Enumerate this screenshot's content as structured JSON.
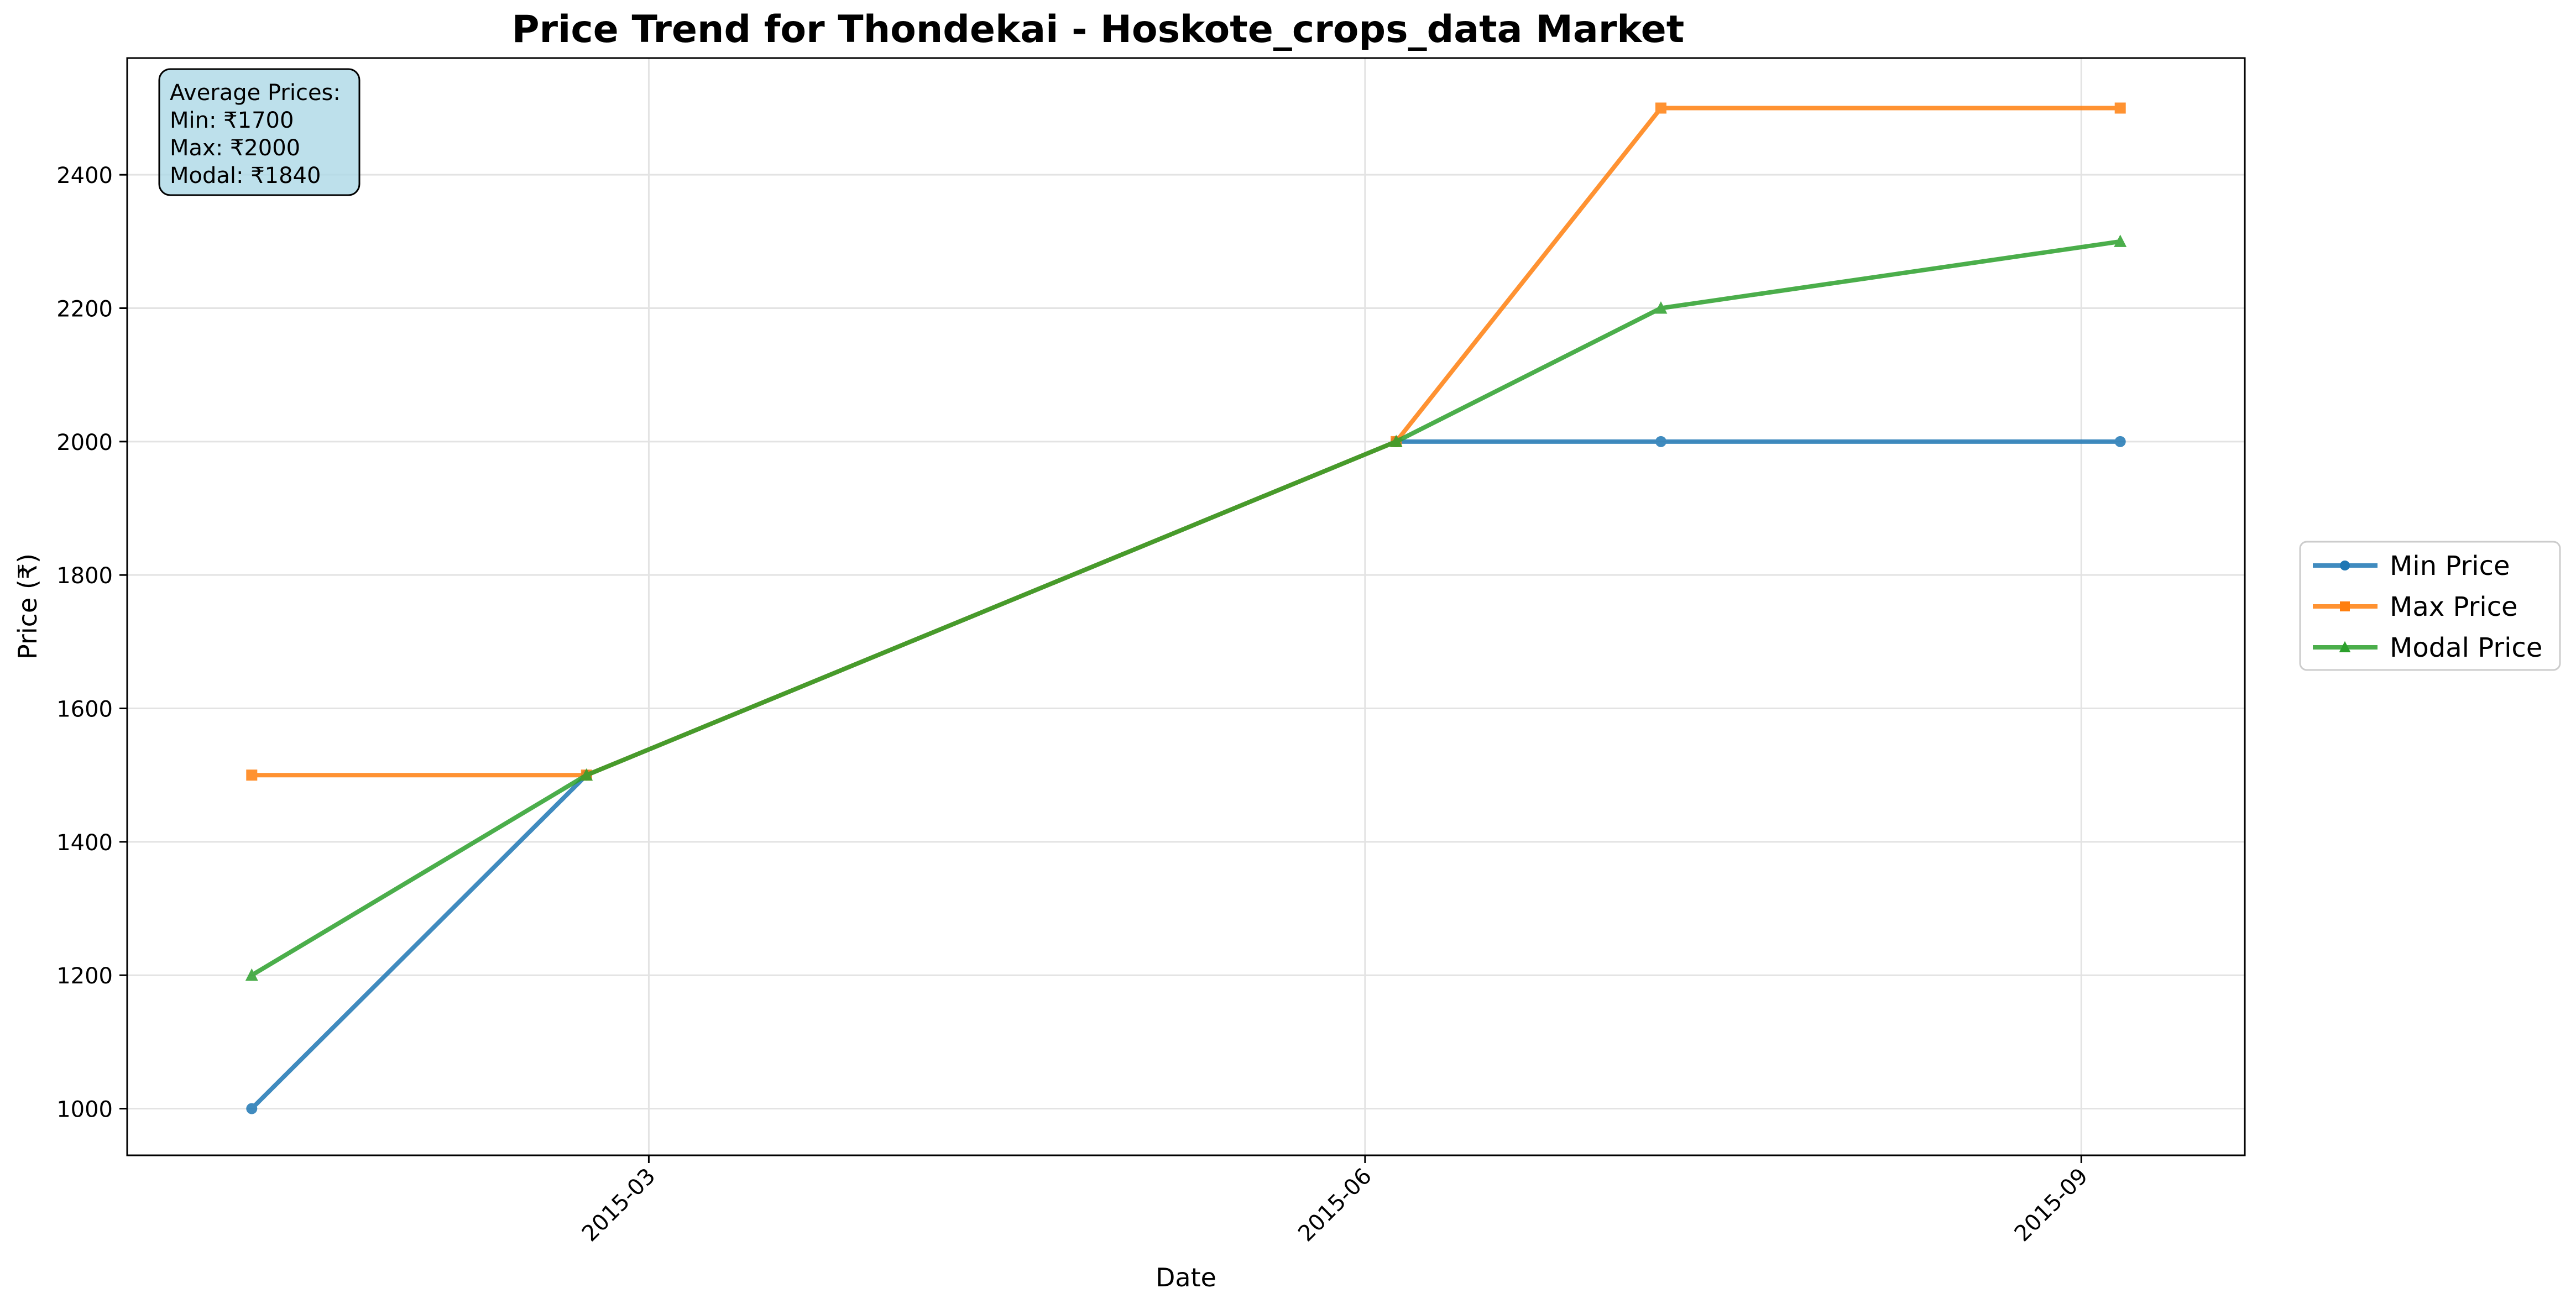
{
  "chart_data": {
    "type": "line",
    "title": "Price Trend for Thondekai - Hoskote_crops_data Market",
    "xlabel": "Date",
    "ylabel": "Price (₹)",
    "x": [
      "2015-01-09",
      "2015-02-21",
      "2015-06-05",
      "2015-07-09",
      "2015-09-06"
    ],
    "xlim": [
      "2014-12-24",
      "2015-09-22"
    ],
    "ylim": [
      930,
      2575
    ],
    "yticks": [
      1000,
      1200,
      1400,
      1600,
      1800,
      2000,
      2200,
      2400
    ],
    "xticks": [
      {
        "date": "2015-03-01",
        "label": "2015-03"
      },
      {
        "date": "2015-06-01",
        "label": "2015-06"
      },
      {
        "date": "2015-09-01",
        "label": "2015-09"
      }
    ],
    "grid": true,
    "legend_position": "right-outside",
    "series": [
      {
        "name": "Min Price",
        "values": [
          1000,
          1500,
          2000,
          2000,
          2000
        ],
        "color": "#1f77b4",
        "marker": "circle"
      },
      {
        "name": "Max Price",
        "values": [
          1500,
          1500,
          2000,
          2500,
          2500
        ],
        "color": "#ff7f0e",
        "marker": "square"
      },
      {
        "name": "Modal Price",
        "values": [
          1200,
          1500,
          2000,
          2200,
          2300
        ],
        "color": "#2ca02c",
        "marker": "triangle"
      }
    ],
    "annotation": {
      "lines": [
        "Average Prices:",
        "Min: ₹1700",
        "Max: ₹2000",
        "Modal: ₹1840"
      ],
      "background": "#add8e6"
    }
  }
}
